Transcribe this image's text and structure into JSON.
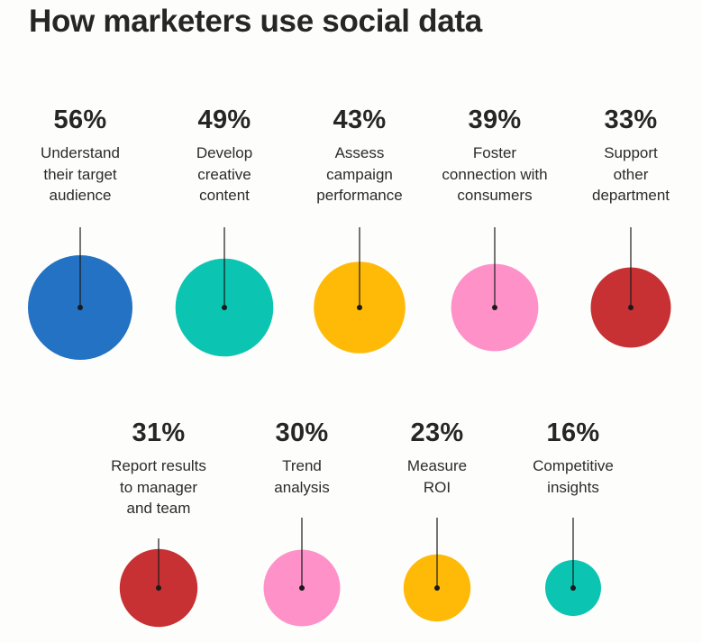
{
  "title": "How marketers use social data",
  "chart_data": {
    "type": "bubble",
    "title": "How marketers use social data",
    "unit": "%",
    "items": [
      {
        "label": "Understand their target audience",
        "lines": [
          "Understand",
          "their target",
          "audience"
        ],
        "value": 56,
        "display": "56%",
        "color": "#2372c3"
      },
      {
        "label": "Develop creative content",
        "lines": [
          "Develop",
          "creative",
          "content"
        ],
        "value": 49,
        "display": "49%",
        "color": "#0bc4b1"
      },
      {
        "label": "Assess campaign performance",
        "lines": [
          "Assess",
          "campaign",
          "performance"
        ],
        "value": 43,
        "display": "43%",
        "color": "#ffba08"
      },
      {
        "label": "Foster connection with consumers",
        "lines": [
          "Foster",
          "connection with",
          "consumers"
        ],
        "value": 39,
        "display": "39%",
        "color": "#fe92c8"
      },
      {
        "label": "Support other department",
        "lines": [
          "Support",
          "other",
          "department"
        ],
        "value": 33,
        "display": "33%",
        "color": "#c73133"
      },
      {
        "label": "Report results to manager and team",
        "lines": [
          "Report results",
          "to manager",
          "and team"
        ],
        "value": 31,
        "display": "31%",
        "color": "#c73133"
      },
      {
        "label": "Trend analysis",
        "lines": [
          "Trend",
          "analysis"
        ],
        "value": 30,
        "display": "30%",
        "color": "#fe92c8"
      },
      {
        "label": "Measure ROI",
        "lines": [
          "Measure",
          "ROI"
        ],
        "value": 23,
        "display": "23%",
        "color": "#ffba08"
      },
      {
        "label": "Competitive insights",
        "lines": [
          "Competitive",
          "insights"
        ],
        "value": 16,
        "display": "16%",
        "color": "#0bc4b1"
      }
    ]
  }
}
